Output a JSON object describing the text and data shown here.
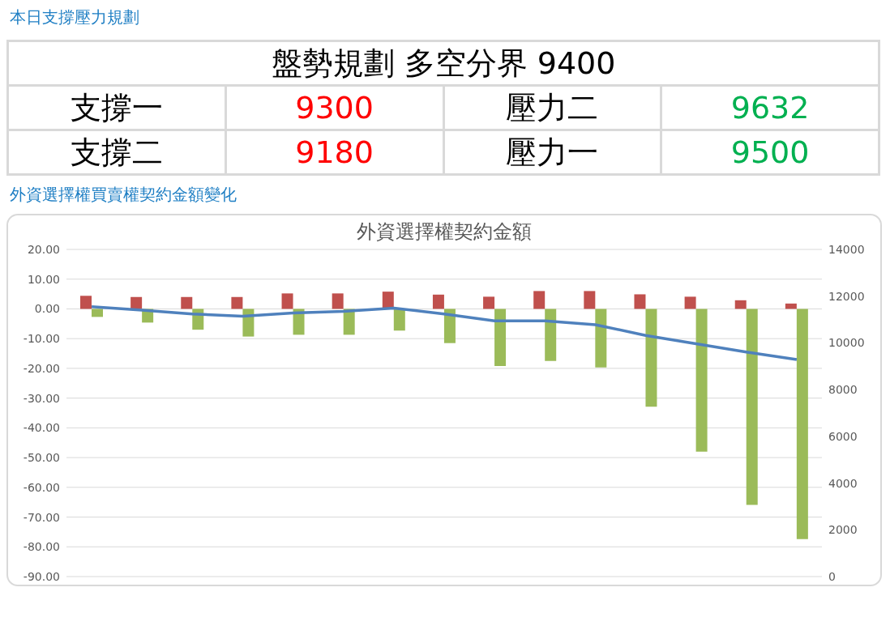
{
  "chart_data": [
    {
      "type": "other",
      "title": "本日支撐壓力規劃",
      "annotations": [
        "盤勢規劃 多空分界 9400",
        "支撐一",
        "9300",
        "壓力二",
        "9632",
        "支撐二",
        "9180",
        "壓力一",
        "9500"
      ],
      "colors": [
        "#000000",
        "#000000",
        "#ff0000",
        "#000000",
        "#00b050",
        "#000000",
        "#ff0000",
        "#000000",
        "#00b050"
      ]
    },
    {
      "type": "bar",
      "title": "外資選擇權買賣權契約金額變化",
      "subtitle": "外資選擇權契約金額",
      "categories": [
        null,
        null,
        null,
        null,
        null,
        null,
        null,
        null,
        null,
        null,
        null,
        null,
        null,
        null,
        null
      ],
      "series": [
        {
          "type": "bar",
          "color": "#c0504d",
          "values": [
            4.4,
            4.0,
            4.0,
            4.0,
            5.2,
            5.2,
            5.8,
            4.8,
            4.1,
            6.0,
            6.0,
            4.9,
            4.1,
            2.9,
            1.8
          ]
        },
        {
          "type": "bar",
          "color": "#9bbb59",
          "values": [
            -2.7,
            -4.6,
            -7.0,
            -9.3,
            -8.7,
            -8.7,
            -7.3,
            -11.5,
            -19.2,
            -17.5,
            -19.7,
            -32.9,
            -48.0,
            -65.9,
            -77.4
          ]
        },
        {
          "type": "line",
          "axis": "y2",
          "color": "#4f81bd",
          "values": [
            11550,
            11400,
            11240,
            11140,
            11280,
            11350,
            11490,
            11240,
            10940,
            10940,
            10780,
            10320,
            9960,
            9610,
            9290
          ]
        }
      ],
      "ylim": [
        -90,
        20
      ],
      "yticks": [
        {
          "value": -90,
          "label": "-90.00"
        },
        {
          "value": -80,
          "label": "-80.00"
        },
        {
          "value": -70,
          "label": "-70.00"
        },
        {
          "value": -60,
          "label": "-60.00"
        },
        {
          "value": -50,
          "label": "-50.00"
        },
        {
          "value": -40,
          "label": "-40.00"
        },
        {
          "value": -30,
          "label": "-30.00"
        },
        {
          "value": -20,
          "label": "-20.00"
        },
        {
          "value": -10,
          "label": "-10.00"
        },
        {
          "value": 0,
          "label": "0.00"
        },
        {
          "value": 10,
          "label": "10.00"
        },
        {
          "value": 20,
          "label": "20.00"
        }
      ],
      "y2lim": [
        0,
        14000
      ],
      "y2ticks": [
        0,
        2000,
        4000,
        6000,
        8000,
        10000,
        12000,
        14000
      ],
      "grid": "y",
      "legend": false,
      "marker": "none",
      "line_style": "solid"
    }
  ]
}
